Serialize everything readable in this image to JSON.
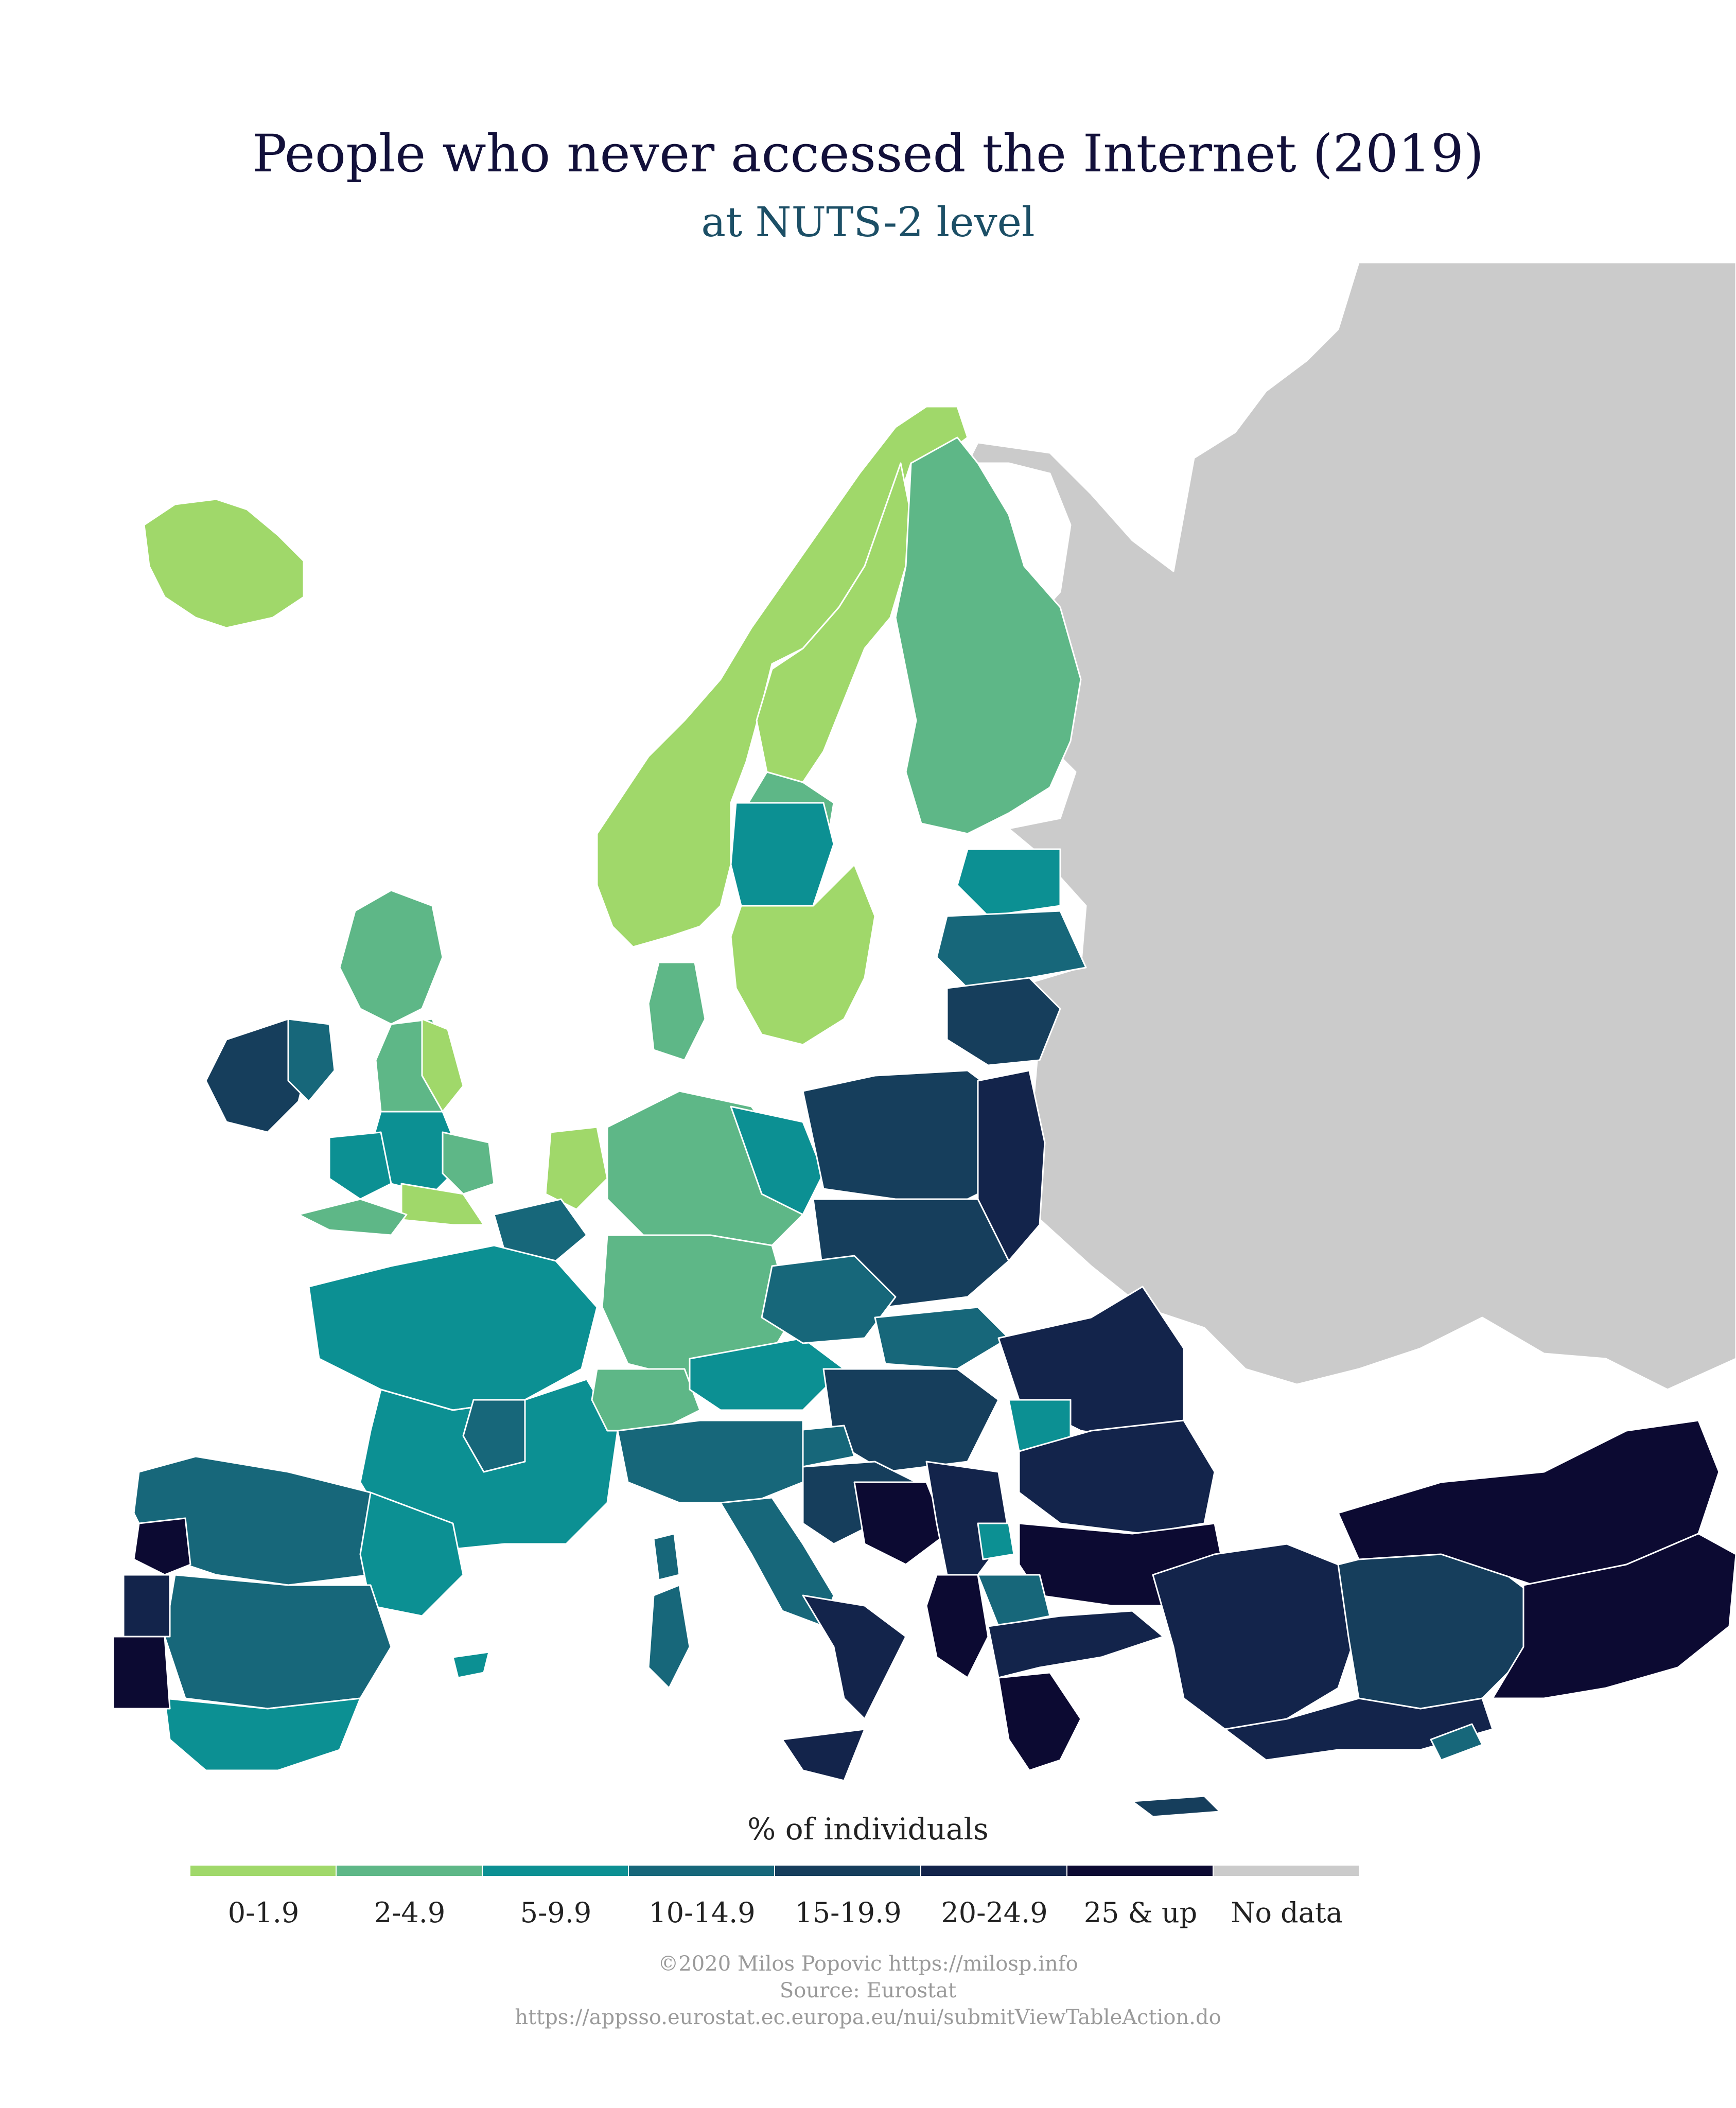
{
  "title": "People who never accessed the Internet (2019)",
  "subtitle": "at NUTS-2 level",
  "legend": {
    "title": "% of individuals",
    "classes": [
      {
        "label": "0-1.9",
        "color": "#a0d86a"
      },
      {
        "label": "2-4.9",
        "color": "#5eb787"
      },
      {
        "label": "5-9.9",
        "color": "#0c9093"
      },
      {
        "label": "10-14.9",
        "color": "#17677a"
      },
      {
        "label": "15-19.9",
        "color": "#163e5c"
      },
      {
        "label": "20-24.9",
        "color": "#13244b"
      },
      {
        "label": "25 & up",
        "color": "#0c0a32"
      },
      {
        "label": "No data",
        "color": "#cbcbcb"
      }
    ]
  },
  "credits": {
    "author": "©2020 Milos Popovic https://milosp.info",
    "source": "Source: Eurostat",
    "url": "https://appsso.eurostat.ec.europa.eu/nui/submitViewTableAction.do"
  },
  "colors": {
    "background": "#ffffff",
    "sea": "#ffffff",
    "border": "#ffffff"
  }
}
